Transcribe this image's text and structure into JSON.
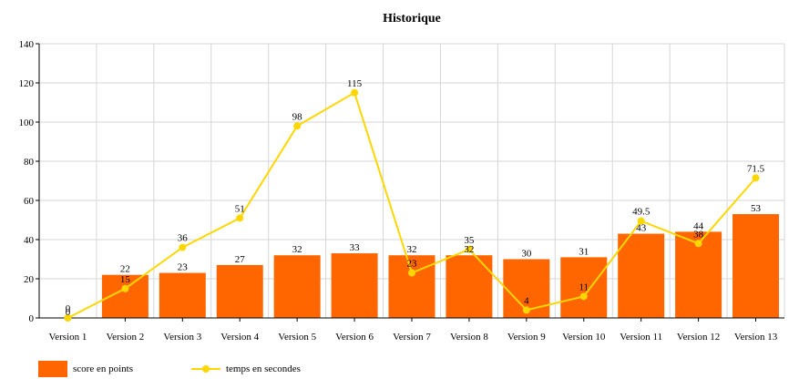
{
  "chart_data": {
    "type": "bar",
    "title": "Historique",
    "categories": [
      "Version 1",
      "Version 2",
      "Version 3",
      "Version 4",
      "Version 5",
      "Version 6",
      "Version 7",
      "Version 8",
      "Version 9",
      "Version 10",
      "Version 11",
      "Version 12",
      "Version 13"
    ],
    "ylim": [
      0,
      140
    ],
    "yticks": [
      0,
      20,
      40,
      60,
      80,
      100,
      120,
      140
    ],
    "grid": true,
    "legend_position": "bottom-left",
    "series": [
      {
        "name": "score en points",
        "type": "bar",
        "color": "#ff6600",
        "values": [
          0,
          22,
          23,
          27,
          32,
          33,
          32,
          32,
          30,
          31,
          43,
          44,
          53
        ]
      },
      {
        "name": "temps en secondes",
        "type": "line",
        "color": "#ffd700",
        "values": [
          0,
          15,
          36,
          51,
          98,
          115,
          23,
          35,
          4,
          11,
          49.5,
          38,
          71.5
        ]
      }
    ]
  }
}
